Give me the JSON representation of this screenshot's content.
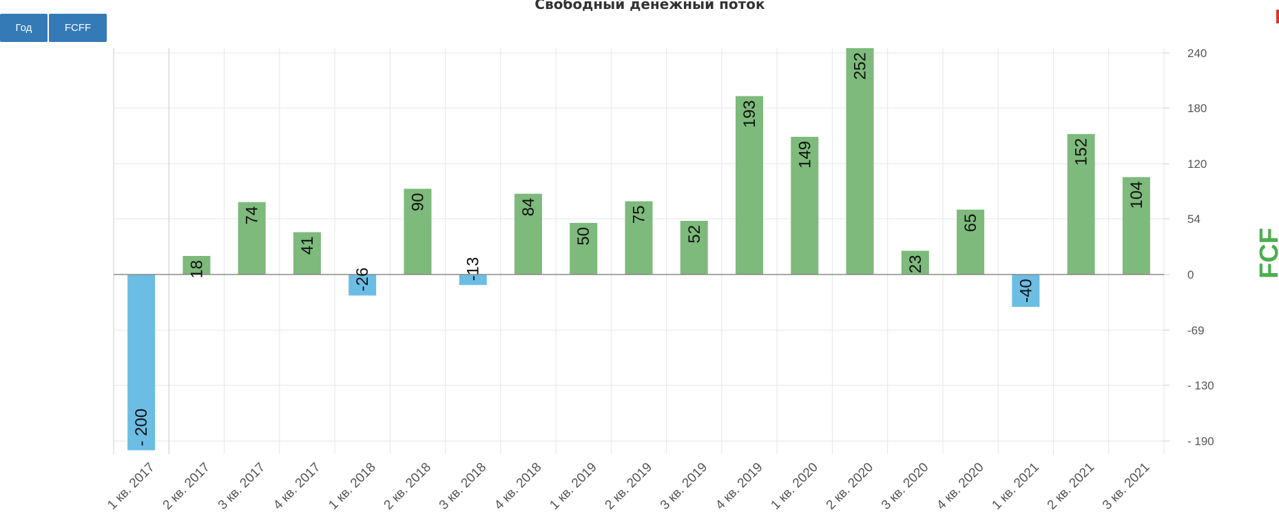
{
  "title": "Свободный денежный поток",
  "buttons": {
    "period_label": "Год",
    "metric_label": "FCFF"
  },
  "colors": {
    "positive": "#7dba7b",
    "negative": "#6cbde3",
    "metric_label": "#4cae50",
    "grid": "#e6e6e6",
    "zero_line": "#888888"
  },
  "chart_data": {
    "type": "bar",
    "title": "Свободный денежный поток",
    "ylabel": "FCF",
    "categories": [
      "1 кв. 2017",
      "2 кв. 2017",
      "3 кв. 2017",
      "4 кв. 2017",
      "1 кв. 2018",
      "2 кв. 2018",
      "3 кв. 2018",
      "4 кв. 2018",
      "1 кв. 2019",
      "2 кв. 2019",
      "3 кв. 2019",
      "4 кв. 2019",
      "1 кв. 2020",
      "2 кв. 2020",
      "3 кв. 2020",
      "4 кв. 2020",
      "1 кв. 2021",
      "2 кв. 2021",
      "3 кв. 2021"
    ],
    "values": [
      -200,
      18,
      74,
      41,
      -26,
      90,
      -13,
      84,
      50,
      75,
      52,
      193,
      149,
      252,
      23,
      65,
      -40,
      152,
      104
    ],
    "value_labels": [
      "- 200",
      "18",
      "74",
      "41",
      "-26",
      "90",
      "-13",
      "84",
      "50",
      "75",
      "52",
      "193",
      "149",
      "252",
      "23",
      "65",
      "-40",
      "152",
      "104"
    ],
    "yticks": [
      240,
      180,
      120,
      54,
      0,
      -69,
      -130,
      -190
    ],
    "ytick_labels": [
      "240",
      "180",
      "120",
      "54",
      "0",
      "-69",
      "- 130",
      "- 190"
    ],
    "ylim": [
      -200,
      252
    ],
    "grid": true,
    "y_axis_position": "right"
  }
}
